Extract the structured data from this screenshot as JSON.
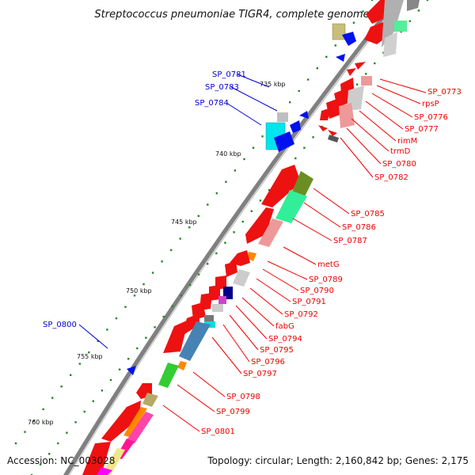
{
  "title": "Streptococcus pneumoniae TIGR4, complete genome",
  "footer": {
    "accession": "Accession: NC_003028",
    "topology": "Topology: circular; Length: 2,160,842 bp; Genes: 2,175"
  },
  "colors": {
    "backbone": "#808080",
    "gene_red": "#ee1111",
    "label_red": "#ee0000",
    "label_blue": "#0000cc",
    "gene_blue": "#0011ee",
    "ticks": "#228822"
  },
  "scale_labels": [
    "735 kbp",
    "740 kbp",
    "745 kbp",
    "750 kbp",
    "755 kbp",
    "760 kbp"
  ],
  "labels_blue": [
    "SP_0781",
    "SP_0783",
    "SP_0784",
    "SP_0800"
  ],
  "labels_red": [
    "SP_0773",
    "rpsP",
    "SP_0776",
    "SP_0777",
    "rimM",
    "trmD",
    "SP_0780",
    "SP_0782",
    "SP_0785",
    "SP_0786",
    "SP_0787",
    "metG",
    "SP_0789",
    "SP_0790",
    "SP_0791",
    "SP_0792",
    "fabG",
    "SP_0794",
    "SP_0795",
    "SP_0796",
    "SP_0797",
    "SP_0798",
    "SP_0799",
    "SP_0801"
  ]
}
